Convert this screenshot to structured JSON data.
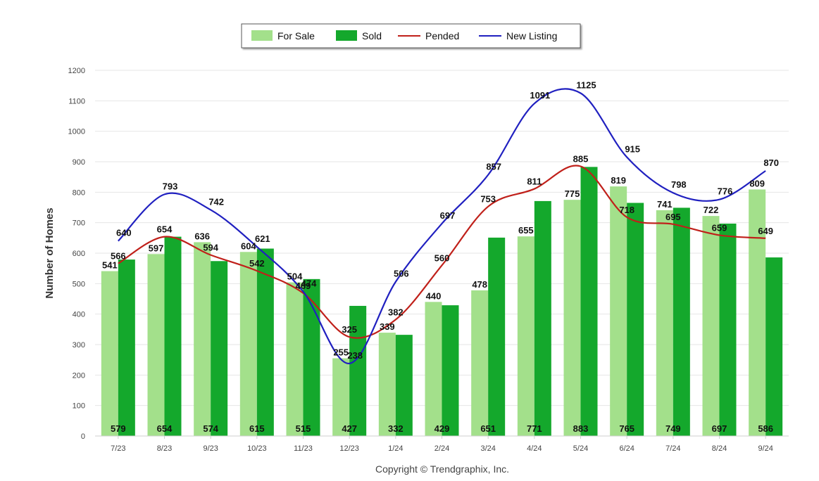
{
  "chart_data": {
    "type": "bar",
    "ylabel": "Number of Homes",
    "copyright": "Copyright © Trendgraphix, Inc.",
    "ylim": [
      0,
      1200
    ],
    "yticks": [
      0,
      100,
      200,
      300,
      400,
      500,
      600,
      700,
      800,
      900,
      1000,
      1100,
      1200
    ],
    "grid": true,
    "legend_position": "top-center",
    "categories": [
      "7/23",
      "8/23",
      "9/23",
      "10/23",
      "11/23",
      "12/23",
      "1/24",
      "2/24",
      "3/24",
      "4/24",
      "5/24",
      "6/24",
      "7/24",
      "8/24",
      "9/24"
    ],
    "series": [
      {
        "name": "For Sale",
        "kind": "bar",
        "color": "#a3e08b",
        "values": [
          541,
          597,
          636,
          604,
          504,
          255,
          339,
          440,
          478,
          655,
          775,
          819,
          741,
          722,
          809
        ]
      },
      {
        "name": "Sold",
        "kind": "bar",
        "color": "#14a82c",
        "values": [
          579,
          654,
          574,
          615,
          515,
          427,
          332,
          429,
          651,
          771,
          883,
          765,
          749,
          697,
          586
        ]
      },
      {
        "name": "Pended",
        "kind": "line",
        "color": "#c0201a",
        "values": [
          566,
          654,
          594,
          542,
          469,
          325,
          382,
          560,
          753,
          811,
          885,
          718,
          695,
          659,
          649
        ]
      },
      {
        "name": "New Listing",
        "kind": "line",
        "color": "#2020c0",
        "values": [
          640,
          793,
          742,
          621,
          474,
          238,
          506,
          697,
          857,
          1091,
          1125,
          915,
          798,
          776,
          870
        ]
      }
    ]
  }
}
